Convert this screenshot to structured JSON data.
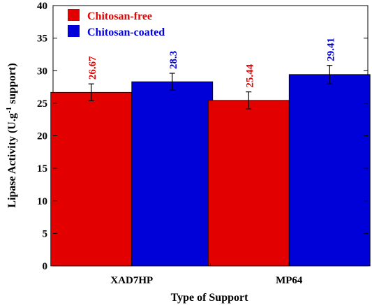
{
  "chart_data": {
    "type": "bar",
    "xlabel": "Type of Support",
    "ylabel": {
      "main": "Lipase Activity (U.g",
      "sup": "-1",
      "tail": " support)"
    },
    "categories": [
      "XAD7HP",
      "MP64"
    ],
    "ylim": [
      0,
      40
    ],
    "yticks": [
      "0",
      "5",
      "10",
      "15",
      "20",
      "25",
      "30",
      "35",
      "40"
    ],
    "grid": false,
    "legend_position": "top-left",
    "series": [
      {
        "name": "Chitosan-free",
        "color": "#e30000",
        "values": [
          26.67,
          25.44
        ],
        "value_labels": [
          "26.67",
          "25.44"
        ],
        "errors": [
          1.3,
          1.3
        ]
      },
      {
        "name": "Chitosan-coated",
        "color": "#0000d8",
        "values": [
          28.3,
          29.41
        ],
        "value_labels": [
          "28.3",
          "29.41"
        ],
        "errors": [
          1.3,
          1.4
        ]
      }
    ]
  }
}
